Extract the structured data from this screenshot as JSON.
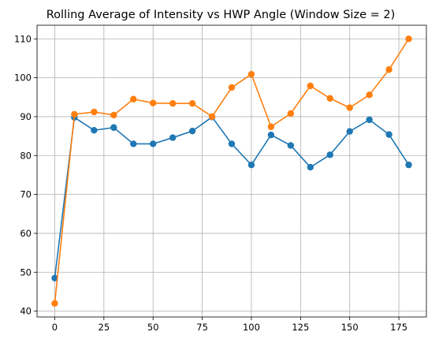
{
  "chart_data": {
    "type": "line",
    "title": "Rolling Average of Intensity vs HWP Angle (Window Size = 2)",
    "xlabel": "",
    "ylabel": "",
    "x": [
      0,
      10,
      20,
      30,
      40,
      50,
      60,
      70,
      80,
      90,
      100,
      110,
      120,
      130,
      140,
      150,
      160,
      170,
      180
    ],
    "xlim": [
      -9,
      189
    ],
    "ylim": [
      38.5,
      113.5
    ],
    "xticks": [
      0,
      25,
      50,
      75,
      100,
      125,
      150,
      175
    ],
    "yticks": [
      40,
      50,
      60,
      70,
      80,
      90,
      100,
      110
    ],
    "grid": true,
    "series": [
      {
        "color": "#1f77b4",
        "marker": "circle",
        "values": [
          48.5,
          89.8,
          86.5,
          87.2,
          83.0,
          83.0,
          84.6,
          86.3,
          89.9,
          83.0,
          77.6,
          85.3,
          82.6,
          77.0,
          80.2,
          86.2,
          89.2,
          85.4,
          77.6
        ]
      },
      {
        "color": "#ff7f0e",
        "marker": "circle",
        "values": [
          42.0,
          90.6,
          91.2,
          90.4,
          94.5,
          93.5,
          93.4,
          93.4,
          90.0,
          97.5,
          100.9,
          87.4,
          90.8,
          97.9,
          94.7,
          92.3,
          95.6,
          102.1,
          110.0
        ]
      }
    ]
  }
}
